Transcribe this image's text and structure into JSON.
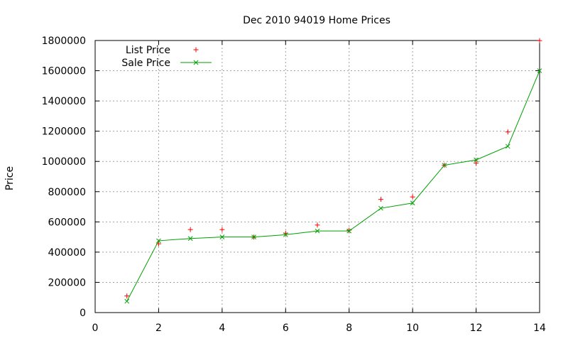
{
  "chart_data": {
    "type": "line",
    "title": "Dec 2010 94019 Home Prices",
    "xlabel": "",
    "ylabel": "Price",
    "xlim": [
      0,
      14
    ],
    "ylim": [
      0,
      1800000
    ],
    "x_ticks": [
      0,
      2,
      4,
      6,
      8,
      10,
      12,
      14
    ],
    "y_ticks": [
      0,
      200000,
      400000,
      600000,
      800000,
      1000000,
      1200000,
      1400000,
      1600000,
      1800000
    ],
    "grid": true,
    "legend_position": "top-left",
    "series": [
      {
        "name": "List Price",
        "style": "points",
        "marker": "+",
        "color": "#ff0000",
        "x": [
          1,
          2,
          3,
          4,
          5,
          6,
          7,
          8,
          9,
          10,
          11,
          12,
          13,
          14
        ],
        "values": [
          110000,
          455000,
          549000,
          549000,
          499000,
          525000,
          579000,
          545000,
          749000,
          765000,
          975000,
          989000,
          1195000,
          1799000
        ]
      },
      {
        "name": "Sale Price",
        "style": "linespoints",
        "marker": "x",
        "color": "#00a000",
        "x": [
          1,
          2,
          3,
          4,
          5,
          6,
          7,
          8,
          9,
          10,
          11,
          12,
          13,
          14
        ],
        "values": [
          75000,
          475000,
          490000,
          500000,
          500000,
          515000,
          540000,
          540000,
          690000,
          725000,
          975000,
          1010000,
          1100000,
          1600000
        ]
      }
    ]
  }
}
